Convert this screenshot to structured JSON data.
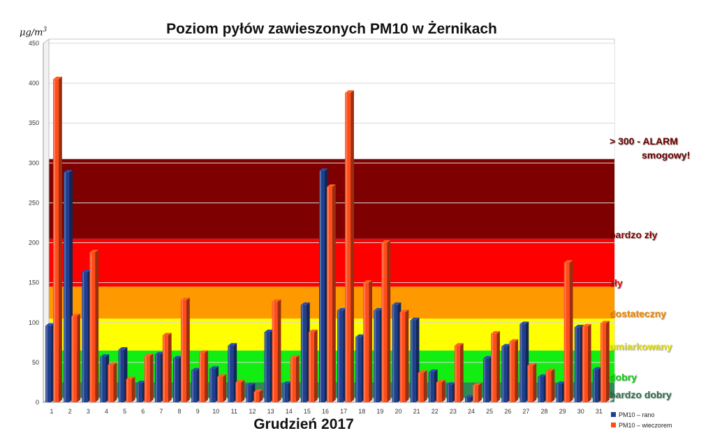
{
  "chart_data": {
    "type": "bar",
    "title": "Poziom pyłów zawieszonych PM10 w Żernikach",
    "xlabel": "Grudzień 2017",
    "ylabel": "μg/m³",
    "ylim": [
      0,
      450
    ],
    "yticks": [
      0,
      50,
      100,
      150,
      200,
      250,
      300,
      350,
      400,
      450
    ],
    "categories": [
      "1",
      "2",
      "3",
      "4",
      "5",
      "6",
      "7",
      "8",
      "9",
      "10",
      "11",
      "12",
      "13",
      "14",
      "15",
      "16",
      "17",
      "18",
      "19",
      "20",
      "21",
      "22",
      "23",
      "24",
      "25",
      "26",
      "27",
      "28",
      "29",
      "30",
      "31"
    ],
    "series": [
      {
        "name": "PM10 – rano",
        "color": "#1f3f8f",
        "values": [
          96,
          288,
          163,
          57,
          66,
          24,
          60,
          55,
          40,
          42,
          71,
          21,
          88,
          23,
          122,
          290,
          115,
          82,
          115,
          122,
          103,
          38,
          22,
          6,
          55,
          70,
          98,
          32,
          23,
          94,
          41
        ]
      },
      {
        "name": "PM10 – wieczorem",
        "color": "#ff4d1a",
        "values": [
          405,
          108,
          188,
          47,
          29,
          58,
          84,
          128,
          62,
          32,
          25,
          13,
          126,
          56,
          88,
          270,
          388,
          150,
          200,
          113,
          37,
          25,
          71,
          21,
          86,
          76,
          46,
          39,
          175,
          95,
          99
        ]
      }
    ],
    "bands": [
      {
        "label": "bardzo dobry",
        "from": 0,
        "to": 25,
        "color": "#2e8b57",
        "text_color": "#2e6f4e"
      },
      {
        "label": "dobry",
        "from": 25,
        "to": 65,
        "color": "#12ee12",
        "text_color": "#12cc12"
      },
      {
        "label": "umiarkowany",
        "from": 65,
        "to": 105,
        "color": "#ffff00",
        "text_color": "#e6e600"
      },
      {
        "label": "dostateczny",
        "from": 105,
        "to": 145,
        "color": "#ff9900",
        "text_color": "#ee8800"
      },
      {
        "label": "zły",
        "from": 145,
        "to": 205,
        "color": "#ff0000",
        "text_color": "#dd0000"
      },
      {
        "label": "bardzo zły",
        "from": 205,
        "to": 305,
        "color": "#7f0000",
        "text_color": "#880000"
      },
      {
        "label": "> 300 - ALARM smogowy!",
        "from": 305,
        "to": 450,
        "color": "#ffffff",
        "text_color": "#6b0000"
      }
    ],
    "grid": true,
    "legend_position": "bottom-right"
  },
  "band_labels": {
    "alarm_line1": "> 300 - ALARM",
    "alarm_line2": "smogowy!",
    "bardzo_zly": "bardzo zły",
    "zly": "zły",
    "dostateczny": "dostateczny",
    "umiarkowany": "umiarkowany",
    "dobry": "dobry",
    "bardzo_dobry": "bardzo dobry"
  },
  "unit": {
    "base": "μg/m",
    "exp": "3"
  }
}
